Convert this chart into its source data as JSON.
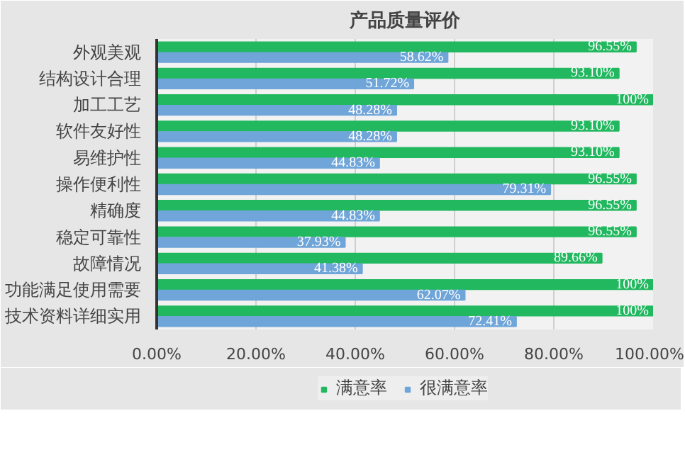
{
  "chart_data": {
    "type": "bar",
    "orientation": "horizontal",
    "title": "产品质量评价",
    "categories": [
      "外观美观",
      "结构设计合理",
      "加工工艺",
      "软件友好性",
      "易维护性",
      "操作便利性",
      "精确度",
      "稳定可靠性",
      "故障情况",
      "功能满足使用需要",
      "技术资料详细实用"
    ],
    "series": [
      {
        "name": "满意率",
        "color": "#22b85f",
        "values": [
          96.55,
          93.1,
          100,
          93.1,
          93.1,
          96.55,
          96.55,
          96.55,
          89.66,
          100,
          100
        ],
        "value_labels": [
          "96.55%",
          "93.10%",
          "100%",
          "93.10%",
          "93.10%",
          "96.55%",
          "96.55%",
          "96.55%",
          "89.66%",
          "100%",
          "100%"
        ]
      },
      {
        "name": "很满意率",
        "color": "#6fa5d8",
        "values": [
          58.62,
          51.72,
          48.28,
          48.28,
          44.83,
          79.31,
          44.83,
          37.93,
          41.38,
          62.07,
          72.41
        ],
        "value_labels": [
          "58.62%",
          "51.72%",
          "48.28%",
          "48.28%",
          "44.83%",
          "79.31%",
          "44.83%",
          "37.93%",
          "41.38%",
          "62.07%",
          "72.41%"
        ]
      }
    ],
    "xlim": [
      0,
      100
    ],
    "xticks": [
      {
        "value": 0,
        "label": "0.00%"
      },
      {
        "value": 20,
        "label": "20.00%"
      },
      {
        "value": 40,
        "label": "40.00%"
      },
      {
        "value": 60,
        "label": "60.00%"
      },
      {
        "value": 80,
        "label": "80.00%"
      },
      {
        "value": 100,
        "label": "100.00%"
      }
    ],
    "grid": "x",
    "legend": "bottom"
  }
}
